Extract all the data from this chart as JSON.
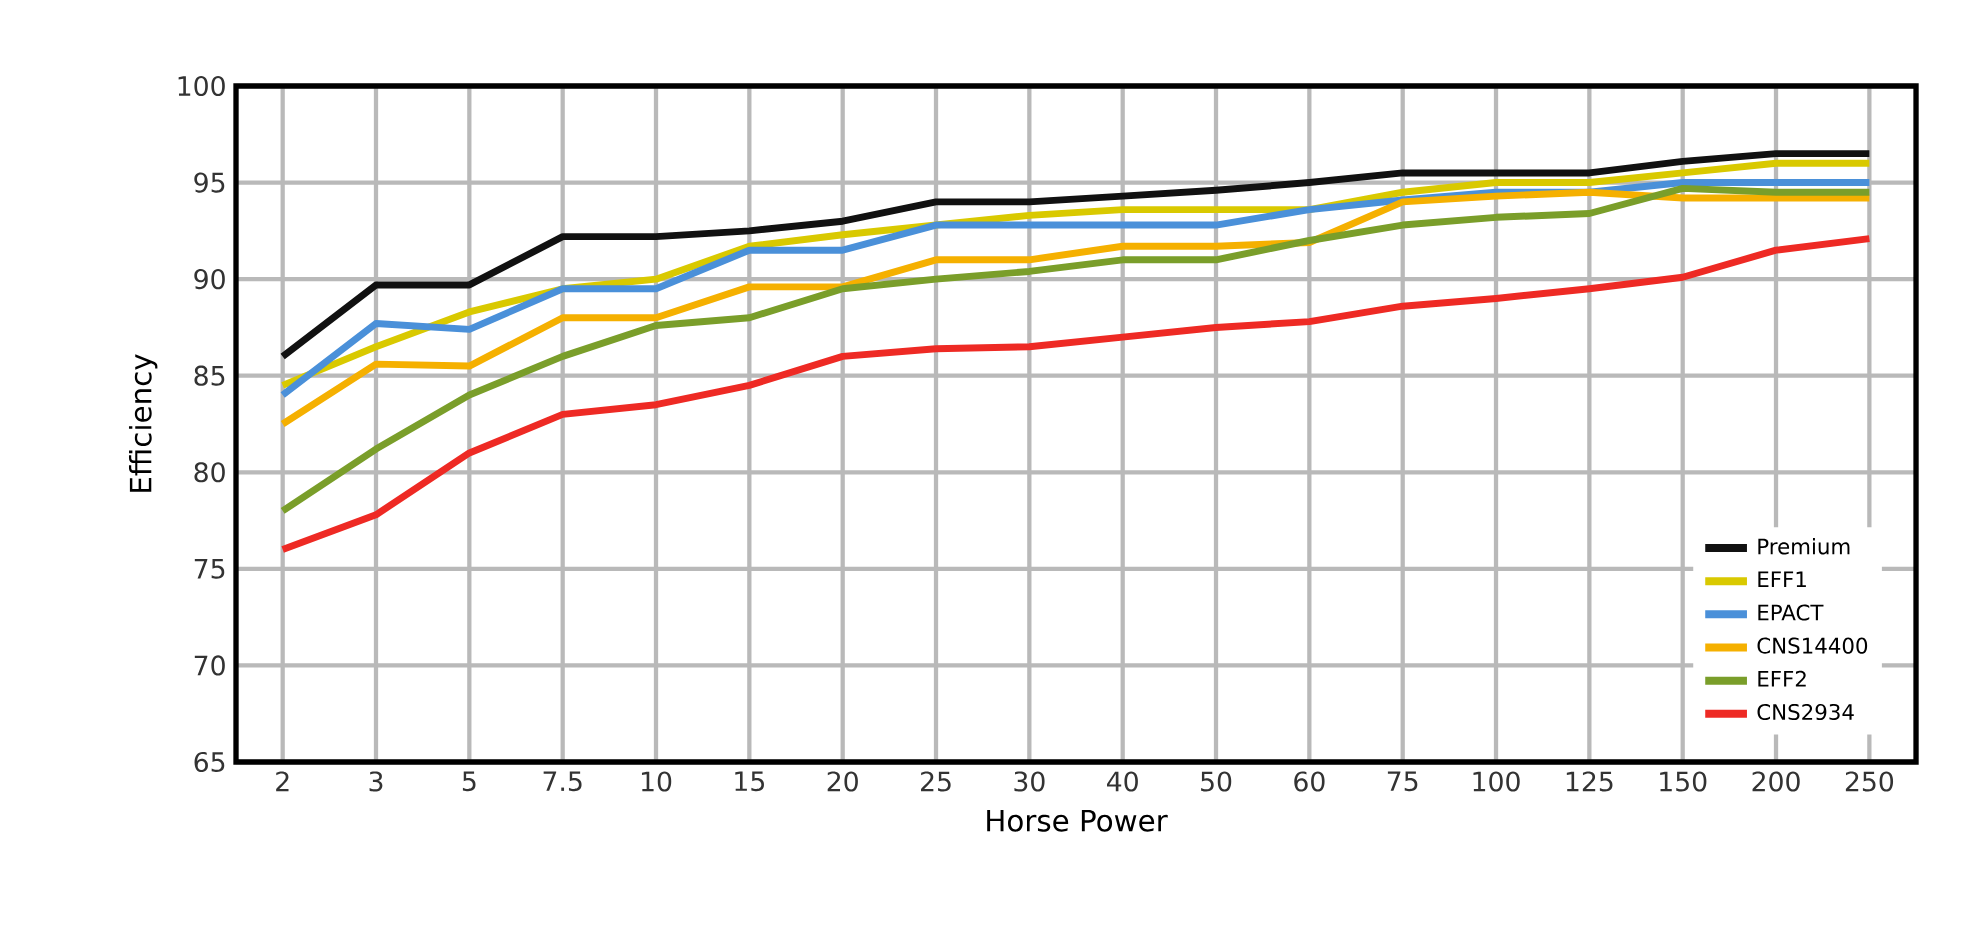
{
  "chart_data": {
    "type": "line",
    "xlabel": "Horse Power",
    "ylabel": "Efficiency",
    "categories": [
      "2",
      "3",
      "5",
      "7.5",
      "10",
      "15",
      "20",
      "25",
      "30",
      "40",
      "50",
      "60",
      "75",
      "100",
      "125",
      "150",
      "200",
      "250"
    ],
    "ylim": [
      65,
      100
    ],
    "yticks": [
      65,
      70,
      75,
      80,
      85,
      90,
      95,
      100
    ],
    "grid": true,
    "legend": "bottom right",
    "marker": "none",
    "line_style": "solid",
    "series": [
      {
        "name": "Premium",
        "color": "#111111",
        "values": [
          86,
          89.7,
          89.7,
          92.2,
          92.2,
          92.5,
          93,
          94,
          94,
          94.3,
          94.6,
          95,
          95.5,
          95.5,
          95.5,
          96.1,
          96.5,
          96.5
        ]
      },
      {
        "name": "EFF1",
        "color": "#d9c900",
        "values": [
          84.5,
          86.5,
          88.3,
          89.5,
          90,
          91.7,
          92.3,
          92.8,
          93.3,
          93.6,
          93.6,
          93.6,
          94.5,
          95,
          95,
          95.5,
          96,
          96
        ]
      },
      {
        "name": "EPACT",
        "color": "#4a90d9",
        "values": [
          84,
          87.7,
          87.4,
          89.5,
          89.5,
          91.5,
          91.5,
          92.8,
          92.8,
          92.8,
          92.8,
          93.6,
          94.1,
          94.5,
          94.5,
          95,
          95,
          95
        ]
      },
      {
        "name": "CNS14400",
        "color": "#f5b000",
        "values": [
          82.5,
          85.6,
          85.5,
          88,
          88,
          89.6,
          89.6,
          91,
          91,
          91.7,
          91.7,
          91.9,
          94,
          94.3,
          94.5,
          94.2,
          94.2,
          94.2
        ]
      },
      {
        "name": "EFF2",
        "color": "#7a9e2a",
        "values": [
          78,
          81.2,
          84,
          86,
          87.6,
          88,
          89.5,
          90,
          90.4,
          91,
          91,
          92,
          92.8,
          93.2,
          93.4,
          94.7,
          94.5,
          94.5
        ]
      },
      {
        "name": "CNS2934",
        "color": "#ee2a24",
        "values": [
          76,
          77.8,
          81,
          83,
          83.5,
          84.5,
          86,
          86.4,
          86.5,
          87,
          87.5,
          87.8,
          88.6,
          89,
          89.5,
          90.1,
          91.5,
          92.1
        ]
      }
    ]
  }
}
